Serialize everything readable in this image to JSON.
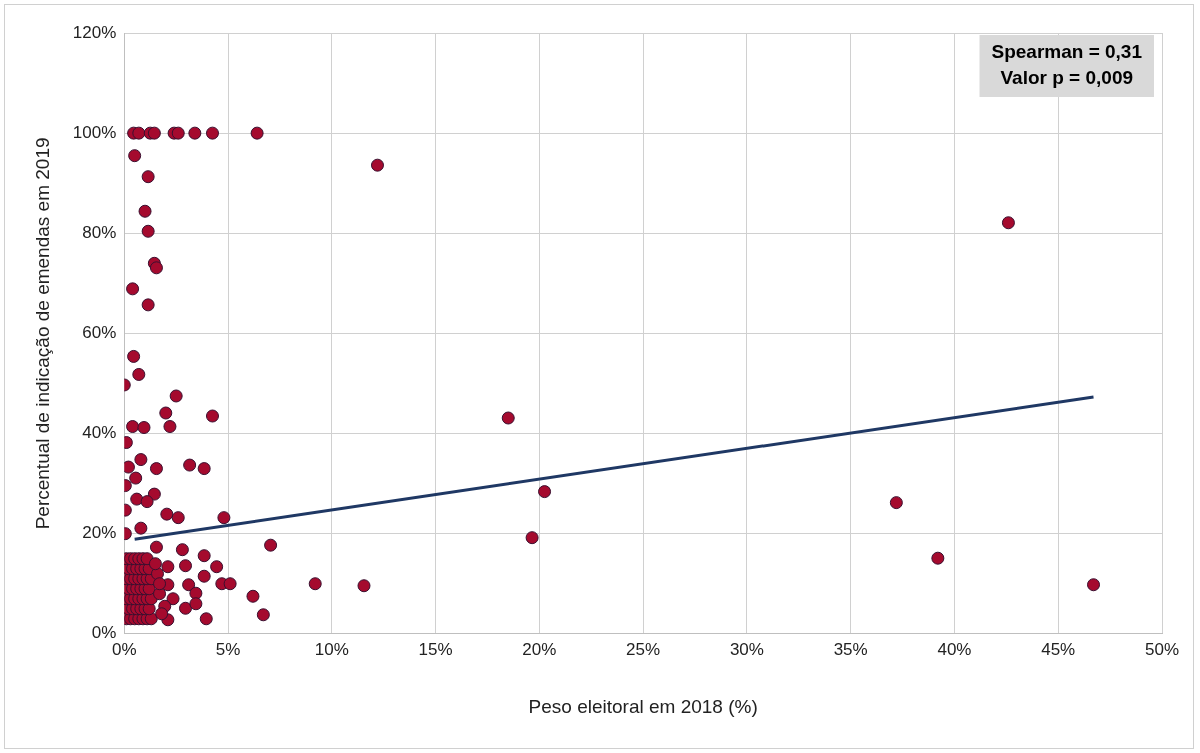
{
  "chart_data": {
    "type": "scatter",
    "xlabel": "Peso eleitoral em 2018 (%)",
    "ylabel": "Percentual de indicação de emendas em 2019",
    "annotations": [
      "Spearman = 0,31\nValor p = 0,009"
    ],
    "xlim": [
      0,
      50
    ],
    "xticks": [
      {
        "value": 0,
        "label": "0%"
      },
      {
        "value": 5,
        "label": "5%"
      },
      {
        "value": 10,
        "label": "10%"
      },
      {
        "value": 15,
        "label": "15%"
      },
      {
        "value": 20,
        "label": "20%"
      },
      {
        "value": 25,
        "label": "25%"
      },
      {
        "value": 30,
        "label": "30%"
      },
      {
        "value": 35,
        "label": "35%"
      },
      {
        "value": 40,
        "label": "40%"
      },
      {
        "value": 45,
        "label": "45%"
      },
      {
        "value": 50,
        "label": "50%"
      }
    ],
    "ylim": [
      0,
      120
    ],
    "yticks": [
      {
        "value": 0,
        "label": "0%"
      },
      {
        "value": 20,
        "label": "20%"
      },
      {
        "value": 40,
        "label": "40%"
      },
      {
        "value": 60,
        "label": "60%"
      },
      {
        "value": 80,
        "label": "80%"
      },
      {
        "value": 100,
        "label": "100%"
      },
      {
        "value": 120,
        "label": "120%"
      }
    ],
    "grid": true,
    "legend": false,
    "series": [
      {
        "marker": "circle",
        "color": "#a50a2e",
        "x": [
          0.45,
          0.7,
          1.25,
          1.45,
          2.4,
          2.6,
          3.4,
          4.25,
          6.4,
          12.2,
          0.5,
          1.15,
          1.0,
          1.15,
          1.45,
          1.55,
          1.15,
          0.4,
          0.45,
          0.7,
          0.0,
          2.5,
          2.0,
          4.25,
          0.4,
          0.95,
          2.2,
          0.1,
          0.2,
          0.8,
          1.55,
          3.15,
          3.85,
          0.05,
          0.55,
          1.45,
          0.6,
          1.1,
          0.05,
          2.05,
          2.6,
          4.8,
          0.05,
          0.8,
          7.05,
          1.55,
          2.8,
          3.85,
          4.45,
          2.1,
          2.95,
          3.85,
          4.7,
          5.1,
          2.1,
          3.1,
          6.2,
          2.35,
          3.45,
          1.95,
          2.95,
          3.45,
          6.7,
          3.95,
          2.1,
          9.2,
          11.55,
          18.5,
          19.65,
          20.25,
          37.2,
          39.2,
          42.6,
          46.7,
          0.1,
          0.3,
          0.5,
          0.7,
          0.9,
          1.1,
          1.3,
          0.2,
          0.4,
          0.6,
          0.8,
          1.0,
          1.2,
          0.1,
          0.3,
          0.5,
          0.7,
          0.9,
          1.1,
          1.3,
          0.2,
          0.4,
          0.6,
          0.8,
          1.0,
          1.2,
          0.1,
          0.3,
          0.5,
          0.7,
          0.9,
          1.1,
          1.3,
          0.2,
          0.4,
          0.6,
          0.8,
          1.0,
          1.2,
          0.1,
          0.3,
          0.5,
          0.7,
          0.9,
          1.1,
          1.6,
          1.7,
          1.8,
          1.5,
          1.7
        ],
        "values": [
          100,
          100,
          100,
          100,
          100,
          100,
          100,
          100,
          100,
          93.6,
          95.5,
          91.3,
          84.4,
          80.4,
          74,
          73.1,
          65.7,
          68.9,
          55.4,
          51.8,
          49.7,
          47.5,
          44.1,
          43.5,
          41.4,
          41.2,
          41.4,
          38.2,
          33.3,
          34.8,
          33,
          33.7,
          33,
          29.6,
          31.1,
          27.9,
          26.9,
          26.4,
          24.7,
          23.9,
          23.2,
          23.2,
          20,
          21.1,
          17.7,
          17.3,
          16.8,
          15.6,
          13.4,
          13.4,
          13.6,
          11.5,
          10,
          10,
          9.8,
          9.8,
          7.5,
          7,
          8.1,
          5.5,
          5.1,
          6,
          3.8,
          3,
          2.8,
          10,
          9.6,
          43.1,
          19.2,
          28.4,
          26.2,
          15.1,
          82.1,
          9.8,
          3,
          3,
          3,
          3,
          3,
          3,
          3,
          5,
          5,
          5,
          5,
          5,
          5,
          7,
          7,
          7,
          7,
          7,
          7,
          7,
          9,
          9,
          9,
          9,
          9,
          9,
          11,
          11,
          11,
          11,
          11,
          11,
          11,
          13,
          13,
          13,
          13,
          13,
          13,
          15,
          15,
          15,
          15,
          15,
          15,
          12,
          8,
          4,
          14,
          10
        ]
      },
      {
        "type": "line",
        "marker": "none",
        "color": "#1f3864",
        "x": [
          0.5,
          46.7
        ],
        "values": [
          18.9,
          47.3
        ]
      }
    ]
  }
}
